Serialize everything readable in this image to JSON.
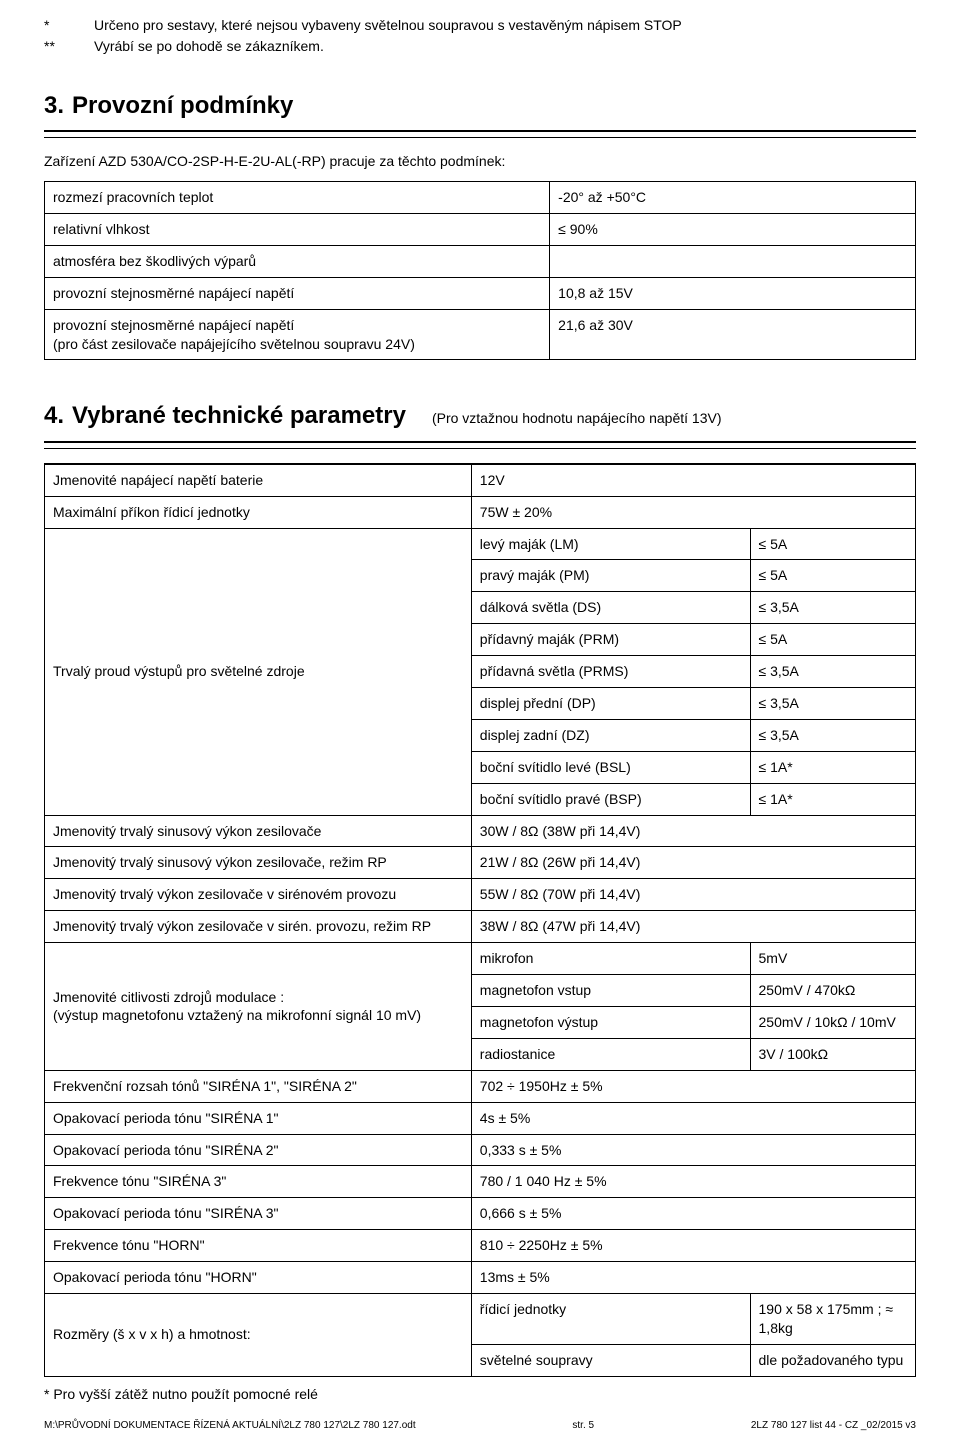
{
  "top_notes": [
    {
      "marker": "*",
      "text": "Určeno pro sestavy, které nejsou vybaveny světelnou soupravou s vestavěným nápisem STOP"
    },
    {
      "marker": "**",
      "text": "Vyrábí se po dohodě se zákazníkem."
    }
  ],
  "section3": {
    "num": "3.",
    "title": "Provozní  podmínky",
    "intro": "Zařízení AZD 530A/CO-2SP-H-E-2U-AL(-RP) pracuje za těchto podmínek:",
    "rows": [
      {
        "label": "rozmezí pracovních teplot",
        "value": "-20° až +50°C"
      },
      {
        "label": "relativní vlhkost",
        "value": "≤ 90%"
      },
      {
        "label": "atmosféra bez škodlivých výparů",
        "value": ""
      },
      {
        "label": "provozní stejnosměrné napájecí napětí",
        "value": "10,8 až 15V"
      },
      {
        "label": "provozní stejnosměrné napájecí napětí\n(pro část zesilovače napájejícího světelnou soupravu 24V)",
        "value": "21,6 až 30V"
      }
    ]
  },
  "section4": {
    "num": "4.",
    "title": "Vybrané technické parametry",
    "subtitle": "(Pro vztažnou hodnotu napájecího napětí 13V)",
    "rows": [
      {
        "c1": "Jmenovité napájecí napětí baterie",
        "c2": "12V",
        "cs": 2
      },
      {
        "c1": "Maximální příkon řídicí jednotky",
        "c2": "75W ± 20%",
        "cs": 2
      },
      {
        "c1_rowspan": 9,
        "c1": "Trvalý proud výstupů pro světelné zdroje",
        "sub": [
          {
            "c2": "levý maják (LM)",
            "c3": "≤ 5A"
          },
          {
            "c2": "pravý maják (PM)",
            "c3": "≤ 5A"
          },
          {
            "c2": "dálková světla (DS)",
            "c3": "≤ 3,5A"
          },
          {
            "c2": "přídavný maják (PRM)",
            "c3": "≤ 5A"
          },
          {
            "c2": "přídavná světla (PRMS)",
            "c3": "≤ 3,5A"
          },
          {
            "c2": "displej přední (DP)",
            "c3": "≤ 3,5A"
          },
          {
            "c2": "displej zadní (DZ)",
            "c3": "≤ 3,5A"
          },
          {
            "c2": "boční svítidlo levé (BSL)",
            "c3": "≤ 1A*"
          },
          {
            "c2": "boční svítidlo pravé (BSP)",
            "c3": "≤ 1A*"
          }
        ]
      },
      {
        "c1": "Jmenovitý trvalý sinusový výkon zesilovače",
        "c2": "30W / 8Ω (38W při 14,4V)",
        "cs": 2
      },
      {
        "c1": "Jmenovitý trvalý sinusový výkon zesilovače, režim RP",
        "c2": "21W / 8Ω (26W při 14,4V)",
        "cs": 2
      },
      {
        "c1": "Jmenovitý trvalý výkon zesilovače v sirénovém provozu",
        "c2": "55W / 8Ω  (70W při 14,4V)",
        "cs": 2
      },
      {
        "c1": "Jmenovitý trvalý výkon zesilovače v sirén. provozu, režim RP",
        "c2": "38W / 8Ω  (47W při 14,4V)",
        "cs": 2
      },
      {
        "c1_rowspan": 4,
        "c1": "Jmenovité citlivosti zdrojů modulace :\n(výstup magnetofonu vztažený na mikrofonní signál 10 mV)",
        "sub": [
          {
            "c2": "mikrofon",
            "c3": "5mV"
          },
          {
            "c2": "magnetofon vstup",
            "c3": "250mV / 470kΩ"
          },
          {
            "c2": "magnetofon výstup",
            "c3": "250mV / 10kΩ  / 10mV"
          },
          {
            "c2": "radiostanice",
            "c3": "3V / 100kΩ"
          }
        ]
      },
      {
        "c1": "Frekvenční rozsah tónů \"SIRÉNA 1\", \"SIRÉNA 2\"",
        "c2": "702 ÷ 1950Hz ± 5%",
        "cs": 2
      },
      {
        "c1": "Opakovací perioda tónu \"SIRÉNA 1\"",
        "c2": "4s ± 5%",
        "cs": 2
      },
      {
        "c1": "Opakovací perioda tónu \"SIRÉNA 2\"",
        "c2": "0,333 s ± 5%",
        "cs": 2
      },
      {
        "c1": "Frekvence tónu \"SIRÉNA 3\"",
        "c2": "780 / 1 040 Hz ± 5%",
        "cs": 2
      },
      {
        "c1": "Opakovací perioda  tónu \"SIRÉNA 3\"",
        "c2": "0,666 s ± 5%",
        "cs": 2
      },
      {
        "c1": "Frekvence tónu \"HORN\"",
        "c2": "810 ÷ 2250Hz ± 5%",
        "cs": 2
      },
      {
        "c1": "Opakovací perioda tónu \"HORN\"",
        "c2": "13ms ± 5%",
        "cs": 2
      },
      {
        "c1_rowspan": 2,
        "c1": "Rozměry (š x v x h) a hmotnost:",
        "sub": [
          {
            "c2": "řídicí jednotky",
            "c3": "190 x 58 x 175mm ;  ≈ 1,8kg"
          },
          {
            "c2": "světelné soupravy",
            "c3": "dle požadovaného typu"
          }
        ]
      }
    ],
    "footnote": "* Pro vyšší zátěž nutno použít pomocné relé"
  },
  "footer": {
    "left": "M:\\PRŮVODNÍ DOKUMENTACE ŘÍZENÁ AKTUÁLNÍ\\2LZ 780 127\\2LZ 780 127.odt",
    "center": "str. 5",
    "right": "2LZ 780 127 list 44 - CZ _02/2015 v3"
  }
}
